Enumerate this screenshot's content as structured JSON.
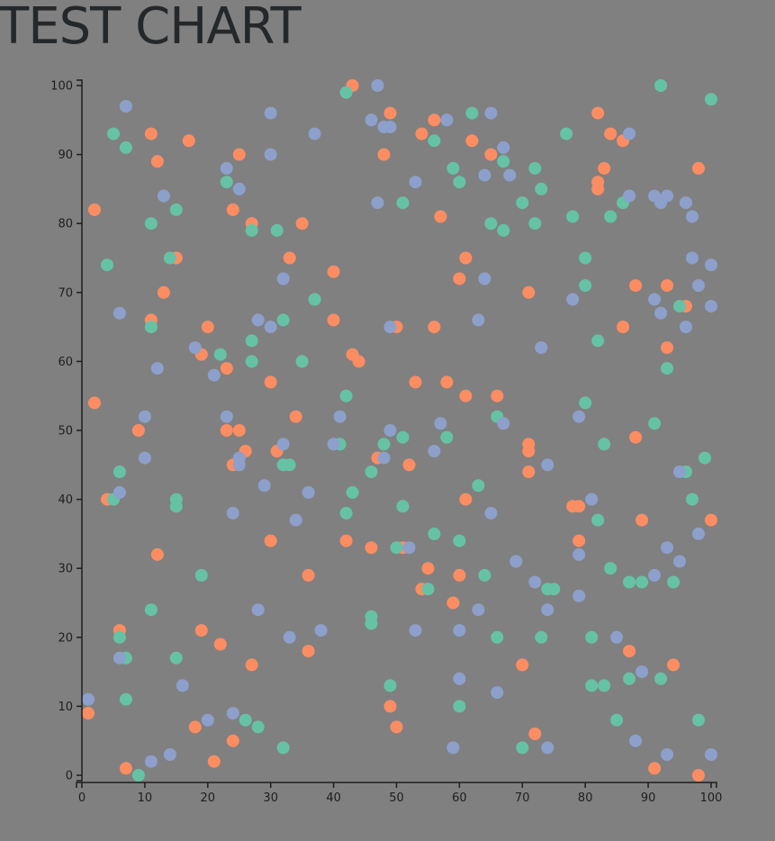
{
  "title": "TEST CHART",
  "chart_data": {
    "type": "scatter",
    "title": "TEST CHART",
    "xlabel": "",
    "ylabel": "",
    "xlim": [
      0,
      100
    ],
    "ylim": [
      0,
      100
    ],
    "grid": false,
    "x_ticks": [
      "0",
      "10",
      "20",
      "30",
      "40",
      "50",
      "60",
      "70",
      "80",
      "90",
      "100"
    ],
    "y_ticks": [
      "0",
      "10",
      "20",
      "30",
      "40",
      "50",
      "60",
      "70",
      "80",
      "90",
      "100"
    ],
    "series": [
      {
        "color": "#fc8d62",
        "points": [
          [
            1,
            9
          ],
          [
            2,
            82
          ],
          [
            2,
            54
          ],
          [
            4,
            40
          ],
          [
            6,
            21
          ],
          [
            7,
            1
          ],
          [
            9,
            50
          ],
          [
            11,
            93
          ],
          [
            11,
            66
          ],
          [
            12,
            89
          ],
          [
            12,
            32
          ],
          [
            13,
            70
          ],
          [
            15,
            75
          ],
          [
            17,
            92
          ],
          [
            18,
            7
          ],
          [
            19,
            61
          ],
          [
            19,
            21
          ],
          [
            20,
            65
          ],
          [
            21,
            2
          ],
          [
            22,
            19
          ],
          [
            23,
            59
          ],
          [
            23,
            50
          ],
          [
            24,
            82
          ],
          [
            24,
            45
          ],
          [
            24,
            5
          ],
          [
            25,
            90
          ],
          [
            25,
            50
          ],
          [
            26,
            47
          ],
          [
            27,
            80
          ],
          [
            27,
            16
          ],
          [
            30,
            57
          ],
          [
            30,
            34
          ],
          [
            31,
            47
          ],
          [
            33,
            75
          ],
          [
            34,
            52
          ],
          [
            35,
            80
          ],
          [
            36,
            29
          ],
          [
            36,
            18
          ],
          [
            40,
            73
          ],
          [
            40,
            66
          ],
          [
            42,
            34
          ],
          [
            43,
            100
          ],
          [
            43,
            61
          ],
          [
            44,
            60
          ],
          [
            46,
            33
          ],
          [
            47,
            46
          ],
          [
            48,
            90
          ],
          [
            49,
            96
          ],
          [
            49,
            10
          ],
          [
            50,
            65
          ],
          [
            50,
            7
          ],
          [
            51,
            33
          ],
          [
            52,
            45
          ],
          [
            53,
            57
          ],
          [
            54,
            93
          ],
          [
            54,
            27
          ],
          [
            55,
            30
          ],
          [
            56,
            95
          ],
          [
            56,
            65
          ],
          [
            57,
            81
          ],
          [
            58,
            57
          ],
          [
            59,
            25
          ],
          [
            60,
            72
          ],
          [
            60,
            29
          ],
          [
            61,
            75
          ],
          [
            61,
            55
          ],
          [
            61,
            40
          ],
          [
            62,
            92
          ],
          [
            65,
            90
          ],
          [
            66,
            55
          ],
          [
            70,
            16
          ],
          [
            71,
            70
          ],
          [
            71,
            48
          ],
          [
            71,
            47
          ],
          [
            71,
            44
          ],
          [
            72,
            6
          ],
          [
            78,
            39
          ],
          [
            79,
            39
          ],
          [
            79,
            34
          ],
          [
            82,
            96
          ],
          [
            82,
            86
          ],
          [
            82,
            85
          ],
          [
            83,
            88
          ],
          [
            84,
            93
          ],
          [
            86,
            92
          ],
          [
            86,
            65
          ],
          [
            87,
            18
          ],
          [
            88,
            71
          ],
          [
            88,
            49
          ],
          [
            89,
            37
          ],
          [
            91,
            1
          ],
          [
            93,
            71
          ],
          [
            93,
            62
          ],
          [
            94,
            16
          ],
          [
            96,
            68
          ],
          [
            98,
            88
          ],
          [
            98,
            0
          ],
          [
            100,
            37
          ]
        ]
      },
      {
        "color": "#66c2a5",
        "points": [
          [
            4,
            74
          ],
          [
            5,
            40
          ],
          [
            5,
            93
          ],
          [
            6,
            44
          ],
          [
            6,
            20
          ],
          [
            7,
            91
          ],
          [
            7,
            17
          ],
          [
            7,
            11
          ],
          [
            9,
            0
          ],
          [
            11,
            80
          ],
          [
            11,
            65
          ],
          [
            11,
            24
          ],
          [
            14,
            75
          ],
          [
            15,
            82
          ],
          [
            15,
            40
          ],
          [
            15,
            39
          ],
          [
            15,
            17
          ],
          [
            19,
            29
          ],
          [
            22,
            61
          ],
          [
            23,
            86
          ],
          [
            26,
            8
          ],
          [
            27,
            79
          ],
          [
            27,
            63
          ],
          [
            27,
            60
          ],
          [
            28,
            7
          ],
          [
            31,
            79
          ],
          [
            32,
            66
          ],
          [
            32,
            45
          ],
          [
            32,
            4
          ],
          [
            33,
            45
          ],
          [
            35,
            60
          ],
          [
            37,
            69
          ],
          [
            41,
            48
          ],
          [
            42,
            99
          ],
          [
            42,
            55
          ],
          [
            42,
            38
          ],
          [
            43,
            41
          ],
          [
            46,
            44
          ],
          [
            46,
            23
          ],
          [
            46,
            22
          ],
          [
            48,
            48
          ],
          [
            49,
            13
          ],
          [
            50,
            33
          ],
          [
            51,
            83
          ],
          [
            51,
            49
          ],
          [
            51,
            39
          ],
          [
            55,
            27
          ],
          [
            56,
            92
          ],
          [
            56,
            35
          ],
          [
            58,
            49
          ],
          [
            59,
            88
          ],
          [
            60,
            86
          ],
          [
            60,
            34
          ],
          [
            60,
            10
          ],
          [
            62,
            96
          ],
          [
            63,
            42
          ],
          [
            64,
            29
          ],
          [
            65,
            80
          ],
          [
            66,
            52
          ],
          [
            66,
            20
          ],
          [
            67,
            89
          ],
          [
            67,
            79
          ],
          [
            70,
            83
          ],
          [
            70,
            4
          ],
          [
            72,
            88
          ],
          [
            72,
            80
          ],
          [
            73,
            85
          ],
          [
            73,
            20
          ],
          [
            74,
            27
          ],
          [
            75,
            27
          ],
          [
            77,
            93
          ],
          [
            78,
            81
          ],
          [
            80,
            75
          ],
          [
            80,
            71
          ],
          [
            80,
            54
          ],
          [
            81,
            20
          ],
          [
            81,
            13
          ],
          [
            82,
            63
          ],
          [
            82,
            37
          ],
          [
            83,
            48
          ],
          [
            83,
            13
          ],
          [
            84,
            81
          ],
          [
            84,
            30
          ],
          [
            85,
            8
          ],
          [
            86,
            83
          ],
          [
            87,
            28
          ],
          [
            87,
            14
          ],
          [
            89,
            28
          ],
          [
            91,
            51
          ],
          [
            92,
            100
          ],
          [
            92,
            14
          ],
          [
            93,
            59
          ],
          [
            94,
            28
          ],
          [
            95,
            68
          ],
          [
            96,
            44
          ],
          [
            97,
            40
          ],
          [
            98,
            8
          ],
          [
            99,
            46
          ],
          [
            100,
            98
          ]
        ]
      },
      {
        "color": "#8da0cb",
        "points": [
          [
            1,
            11
          ],
          [
            6,
            67
          ],
          [
            6,
            41
          ],
          [
            6,
            17
          ],
          [
            7,
            97
          ],
          [
            10,
            52
          ],
          [
            10,
            46
          ],
          [
            11,
            2
          ],
          [
            12,
            59
          ],
          [
            13,
            84
          ],
          [
            14,
            3
          ],
          [
            16,
            13
          ],
          [
            18,
            62
          ],
          [
            20,
            8
          ],
          [
            21,
            58
          ],
          [
            23,
            88
          ],
          [
            23,
            52
          ],
          [
            24,
            38
          ],
          [
            24,
            9
          ],
          [
            25,
            85
          ],
          [
            25,
            46
          ],
          [
            25,
            45
          ],
          [
            28,
            66
          ],
          [
            28,
            24
          ],
          [
            29,
            42
          ],
          [
            30,
            96
          ],
          [
            30,
            90
          ],
          [
            30,
            65
          ],
          [
            32,
            72
          ],
          [
            32,
            48
          ],
          [
            33,
            20
          ],
          [
            34,
            37
          ],
          [
            36,
            41
          ],
          [
            37,
            93
          ],
          [
            38,
            21
          ],
          [
            40,
            48
          ],
          [
            41,
            52
          ],
          [
            46,
            95
          ],
          [
            47,
            100
          ],
          [
            47,
            83
          ],
          [
            48,
            94
          ],
          [
            48,
            46
          ],
          [
            49,
            94
          ],
          [
            49,
            65
          ],
          [
            49,
            50
          ],
          [
            52,
            33
          ],
          [
            53,
            86
          ],
          [
            53,
            21
          ],
          [
            56,
            47
          ],
          [
            57,
            51
          ],
          [
            58,
            95
          ],
          [
            59,
            4
          ],
          [
            60,
            21
          ],
          [
            60,
            14
          ],
          [
            63,
            66
          ],
          [
            63,
            24
          ],
          [
            64,
            87
          ],
          [
            64,
            72
          ],
          [
            65,
            96
          ],
          [
            65,
            38
          ],
          [
            66,
            12
          ],
          [
            67,
            91
          ],
          [
            67,
            51
          ],
          [
            68,
            87
          ],
          [
            69,
            31
          ],
          [
            72,
            28
          ],
          [
            73,
            62
          ],
          [
            74,
            45
          ],
          [
            74,
            24
          ],
          [
            74,
            4
          ],
          [
            78,
            69
          ],
          [
            79,
            52
          ],
          [
            79,
            32
          ],
          [
            79,
            26
          ],
          [
            81,
            40
          ],
          [
            87,
            93
          ],
          [
            87,
            84
          ],
          [
            85,
            20
          ],
          [
            88,
            5
          ],
          [
            89,
            15
          ],
          [
            91,
            84
          ],
          [
            91,
            69
          ],
          [
            91,
            29
          ],
          [
            92,
            83
          ],
          [
            92,
            67
          ],
          [
            93,
            84
          ],
          [
            93,
            33
          ],
          [
            93,
            3
          ],
          [
            95,
            44
          ],
          [
            95,
            31
          ],
          [
            96,
            83
          ],
          [
            96,
            65
          ],
          [
            97,
            81
          ],
          [
            97,
            75
          ],
          [
            98,
            71
          ],
          [
            98,
            35
          ],
          [
            100,
            74
          ],
          [
            100,
            68
          ],
          [
            100,
            3
          ]
        ]
      }
    ]
  }
}
